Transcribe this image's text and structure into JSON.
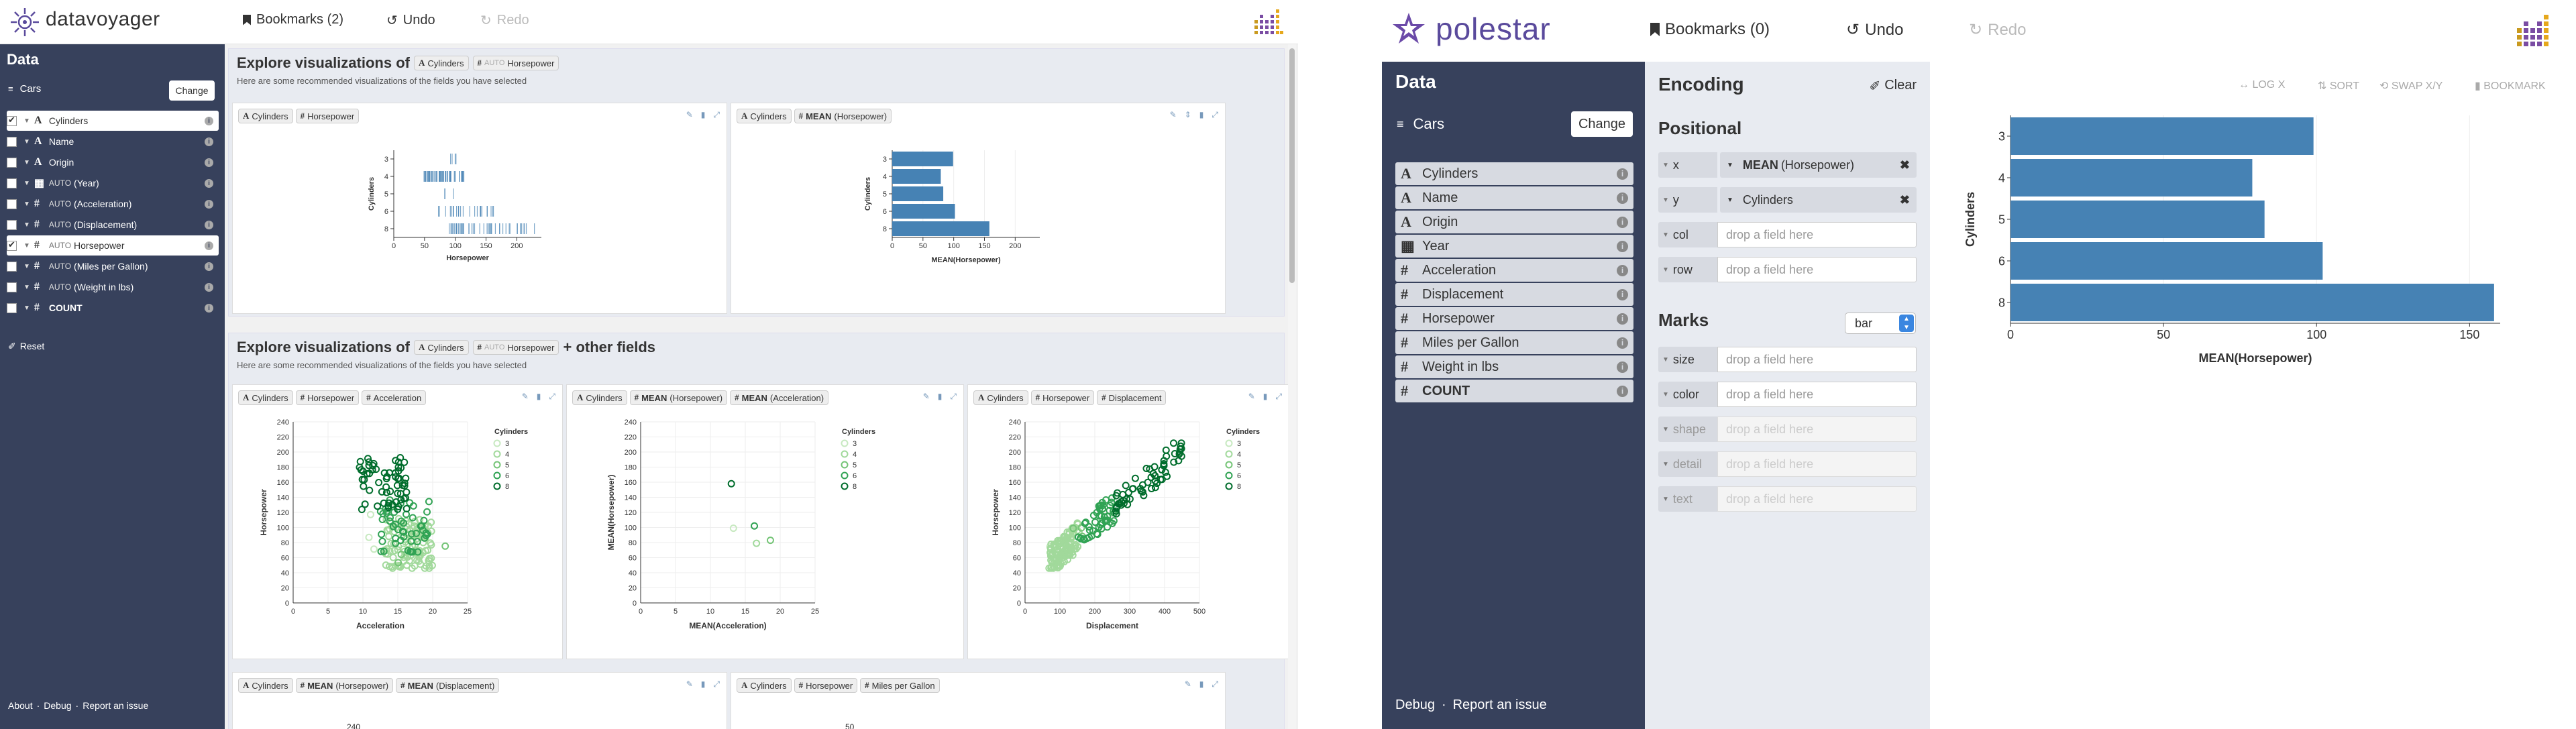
{
  "voyager": {
    "logo_text": "datavoyager",
    "bookmarks_label": "Bookmarks (2)",
    "undo_label": "Undo",
    "redo_label": "Redo",
    "sidebar": {
      "title": "Data",
      "dataset": "Cars",
      "change_label": "Change",
      "reset_label": "Reset",
      "fields": [
        {
          "name": "Cylinders",
          "type": "A",
          "fn": "",
          "checked": true,
          "selected": true
        },
        {
          "name": "Name",
          "type": "A",
          "fn": "",
          "checked": false,
          "selected": false
        },
        {
          "name": "Origin",
          "type": "A",
          "fn": "",
          "checked": false,
          "selected": false
        },
        {
          "name": "(Year)",
          "type": "cal",
          "fn": "AUTO",
          "checked": false,
          "selected": false
        },
        {
          "name": "(Acceleration)",
          "type": "#",
          "fn": "AUTO",
          "checked": false,
          "selected": false
        },
        {
          "name": "(Displacement)",
          "type": "#",
          "fn": "AUTO",
          "checked": false,
          "selected": false
        },
        {
          "name": "Horsepower",
          "type": "#",
          "fn": "AUTO",
          "checked": true,
          "selected": true
        },
        {
          "name": "(Miles per Gallon)",
          "type": "#",
          "fn": "AUTO",
          "checked": false,
          "selected": false
        },
        {
          "name": "(Weight in lbs)",
          "type": "#",
          "fn": "AUTO",
          "checked": false,
          "selected": false
        },
        {
          "name": "COUNT",
          "type": "#",
          "fn": "",
          "checked": false,
          "selected": false
        }
      ],
      "footer": {
        "about": "About",
        "debug": "Debug",
        "report": "Report an issue",
        "sep": "·"
      }
    },
    "section1": {
      "title_prefix": "Explore visualizations of",
      "pill1": "Cylinders",
      "pill2_auto": "AUTO",
      "pill2": "Horsepower",
      "subtitle": "Here are some recommended visualizations of the fields you have selected"
    },
    "section2": {
      "title_prefix": "Explore visualizations of",
      "pill1": "Cylinders",
      "pill2_auto": "AUTO",
      "pill2": "Horsepower",
      "title_suffix": "+ other fields",
      "subtitle": "Here are some recommended visualizations of the fields you have selected"
    },
    "cards": {
      "c1": {
        "f1": "Cylinders",
        "f2": "Horsepower"
      },
      "c2": {
        "f1": "Cylinders",
        "f2_fn": "MEAN",
        "f2": "(Horsepower)"
      },
      "c3": {
        "f1": "Cylinders",
        "f2": "Horsepower",
        "f3": "Acceleration"
      },
      "c4": {
        "f1": "Cylinders",
        "f2_fn": "MEAN",
        "f2": "(Horsepower)",
        "f3_fn": "MEAN",
        "f3": "(Acceleration)"
      },
      "c5": {
        "f1": "Cylinders",
        "f2": "Horsepower",
        "f3": "Displacement"
      },
      "c6": {
        "f1": "Cylinders",
        "f2_fn": "MEAN",
        "f2": "(Horsepower)",
        "f3_fn": "MEAN",
        "f3": "(Displacement)"
      },
      "c7": {
        "f1": "Cylinders",
        "f2": "Horsepower",
        "f3": "Miles per Gallon"
      },
      "c6_tick": "240",
      "c7_tick": "50"
    }
  },
  "polestar": {
    "logo_text": "polestar",
    "bookmarks_label": "Bookmarks (0)",
    "undo_label": "Undo",
    "redo_label": "Redo",
    "sidebar": {
      "title": "Data",
      "dataset": "Cars",
      "change_label": "Change",
      "fields": [
        {
          "name": "Cylinders",
          "type": "A"
        },
        {
          "name": "Name",
          "type": "A"
        },
        {
          "name": "Origin",
          "type": "A"
        },
        {
          "name": "Year",
          "type": "cal"
        },
        {
          "name": "Acceleration",
          "type": "#"
        },
        {
          "name": "Displacement",
          "type": "#"
        },
        {
          "name": "Horsepower",
          "type": "#"
        },
        {
          "name": "Miles per Gallon",
          "type": "#"
        },
        {
          "name": "Weight in lbs",
          "type": "#"
        },
        {
          "name": "COUNT",
          "type": "#"
        }
      ],
      "footer": {
        "debug": "Debug",
        "report": "Report an issue",
        "sep": "·"
      }
    },
    "encoding": {
      "title": "Encoding",
      "clear_label": "Clear",
      "positional_label": "Positional",
      "marks_label": "Marks",
      "mark_type": "bar",
      "placeholder": "drop a field here",
      "x": {
        "label": "x",
        "fn": "MEAN",
        "field": "(Horsepower)"
      },
      "y": {
        "label": "y",
        "field": "Cylinders"
      },
      "col_label": "col",
      "row_label": "row",
      "size_label": "size",
      "color_label": "color",
      "shape_label": "shape",
      "detail_label": "detail",
      "text_label": "text"
    },
    "toolbar": {
      "log_x": "LOG X",
      "sort": "SORT",
      "swap": "SWAP X/Y",
      "bookmark": "BOOKMARK"
    }
  },
  "colors": {
    "sidebar_bg": "#37415c",
    "bar_blue": "#4682b4",
    "panel_bg": "#e8ebf1"
  },
  "chart_data": [
    {
      "type": "bar",
      "id": "polestar-main",
      "categories": [
        "3",
        "4",
        "5",
        "6",
        "8"
      ],
      "values": [
        99,
        79,
        83,
        102,
        158
      ],
      "xlabel": "MEAN(Horsepower)",
      "ylabel": "Cylinders",
      "xticks": [
        "0",
        "50",
        "100",
        "150"
      ],
      "xlim": [
        0,
        160
      ],
      "orientation": "horizontal"
    },
    {
      "type": "bar",
      "id": "voyager-mean-hp",
      "categories": [
        "3",
        "4",
        "5",
        "6",
        "8"
      ],
      "values": [
        99,
        79,
        83,
        102,
        158
      ],
      "xlabel": "MEAN(Horsepower)",
      "ylabel": "Cylinders",
      "xticks": [
        "0",
        "50",
        "100",
        "150",
        "200"
      ],
      "xlim": [
        0,
        240
      ],
      "orientation": "horizontal"
    },
    {
      "type": "scatter",
      "id": "voyager-strip",
      "mark": "tick",
      "categories": [
        "3",
        "4",
        "5",
        "6",
        "8"
      ],
      "ranges": [
        [
          90,
          110
        ],
        [
          46,
          115
        ],
        [
          67,
          103
        ],
        [
          72,
          165
        ],
        [
          90,
          230
        ]
      ],
      "xlabel": "Horsepower",
      "ylabel": "Cylinders",
      "xticks": [
        "0",
        "50",
        "100",
        "150",
        "200"
      ],
      "xlim": [
        0,
        240
      ]
    },
    {
      "type": "scatter",
      "id": "voyager-hp-accel",
      "xlabel": "Acceleration",
      "ylabel": "Horsepower",
      "xticks": [
        "0",
        "5",
        "10",
        "15",
        "20",
        "25"
      ],
      "yticks": [
        "0",
        "20",
        "40",
        "60",
        "80",
        "100",
        "120",
        "140",
        "160",
        "180",
        "200",
        "220",
        "240"
      ],
      "xlim": [
        0,
        25
      ],
      "ylim": [
        0,
        240
      ],
      "legend_title": "Cylinders",
      "legend": [
        "3",
        "4",
        "5",
        "6",
        "8"
      ]
    },
    {
      "type": "scatter",
      "id": "voyager-mean-mean",
      "xlabel": "MEAN(Acceleration)",
      "ylabel": "MEAN(Horsepower)",
      "xticks": [
        "0",
        "5",
        "10",
        "15",
        "20",
        "25"
      ],
      "yticks": [
        "0",
        "20",
        "40",
        "60",
        "80",
        "100",
        "120",
        "140",
        "160",
        "180",
        "200",
        "220",
        "240"
      ],
      "xlim": [
        0,
        25
      ],
      "ylim": [
        0,
        240
      ],
      "legend_title": "Cylinders",
      "legend": [
        "3",
        "4",
        "5",
        "6",
        "8"
      ],
      "points": [
        {
          "cyl": "3",
          "x": 13.3,
          "y": 99
        },
        {
          "cyl": "4",
          "x": 16.6,
          "y": 79
        },
        {
          "cyl": "5",
          "x": 18.6,
          "y": 83
        },
        {
          "cyl": "6",
          "x": 16.3,
          "y": 102
        },
        {
          "cyl": "8",
          "x": 13.0,
          "y": 158
        }
      ]
    },
    {
      "type": "scatter",
      "id": "voyager-hp-disp",
      "xlabel": "Displacement",
      "ylabel": "Horsepower",
      "xticks": [
        "0",
        "100",
        "200",
        "300",
        "400",
        "500"
      ],
      "yticks": [
        "0",
        "20",
        "40",
        "60",
        "80",
        "100",
        "120",
        "140",
        "160",
        "180",
        "200",
        "220",
        "240"
      ],
      "xlim": [
        0,
        500
      ],
      "ylim": [
        0,
        240
      ],
      "legend_title": "Cylinders",
      "legend": [
        "3",
        "4",
        "5",
        "6",
        "8"
      ]
    }
  ]
}
